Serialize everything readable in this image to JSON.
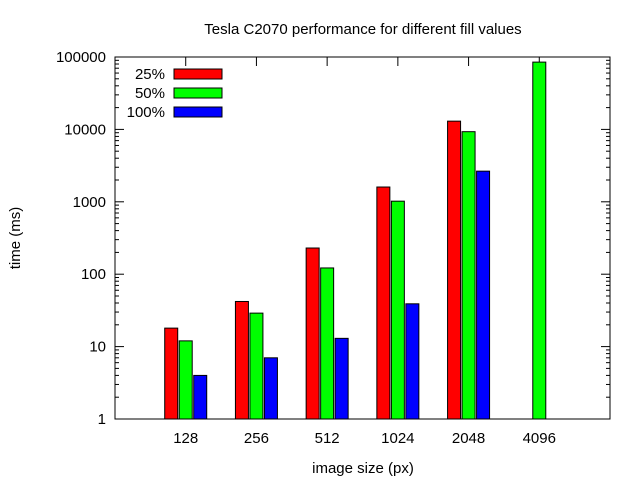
{
  "chart_data": {
    "type": "bar",
    "title": "Tesla C2070 performance for different fill values",
    "xlabel": "image size (px)",
    "ylabel": "time (ms)",
    "yscale": "log",
    "ylim": [
      1,
      100000
    ],
    "yticks": [
      {
        "value": 1,
        "label": "1"
      },
      {
        "value": 10,
        "label": "10"
      },
      {
        "value": 100,
        "label": "100"
      },
      {
        "value": 1000,
        "label": "1000"
      },
      {
        "value": 10000,
        "label": "10000"
      },
      {
        "value": 100000,
        "label": "100000"
      }
    ],
    "categories": [
      "128",
      "256",
      "512",
      "1024",
      "2048",
      "4096"
    ],
    "legend_position": "top-left",
    "grid": false,
    "series": [
      {
        "name": "25%",
        "color": "#ff0000",
        "values": [
          18,
          42,
          230,
          1600,
          13000,
          null
        ]
      },
      {
        "name": "50%",
        "color": "#00ff00",
        "values": [
          12,
          29,
          122,
          1020,
          9300,
          85000
        ]
      },
      {
        "name": "100%",
        "color": "#0000ff",
        "values": [
          4,
          7,
          13,
          39,
          2650,
          null
        ]
      }
    ]
  }
}
